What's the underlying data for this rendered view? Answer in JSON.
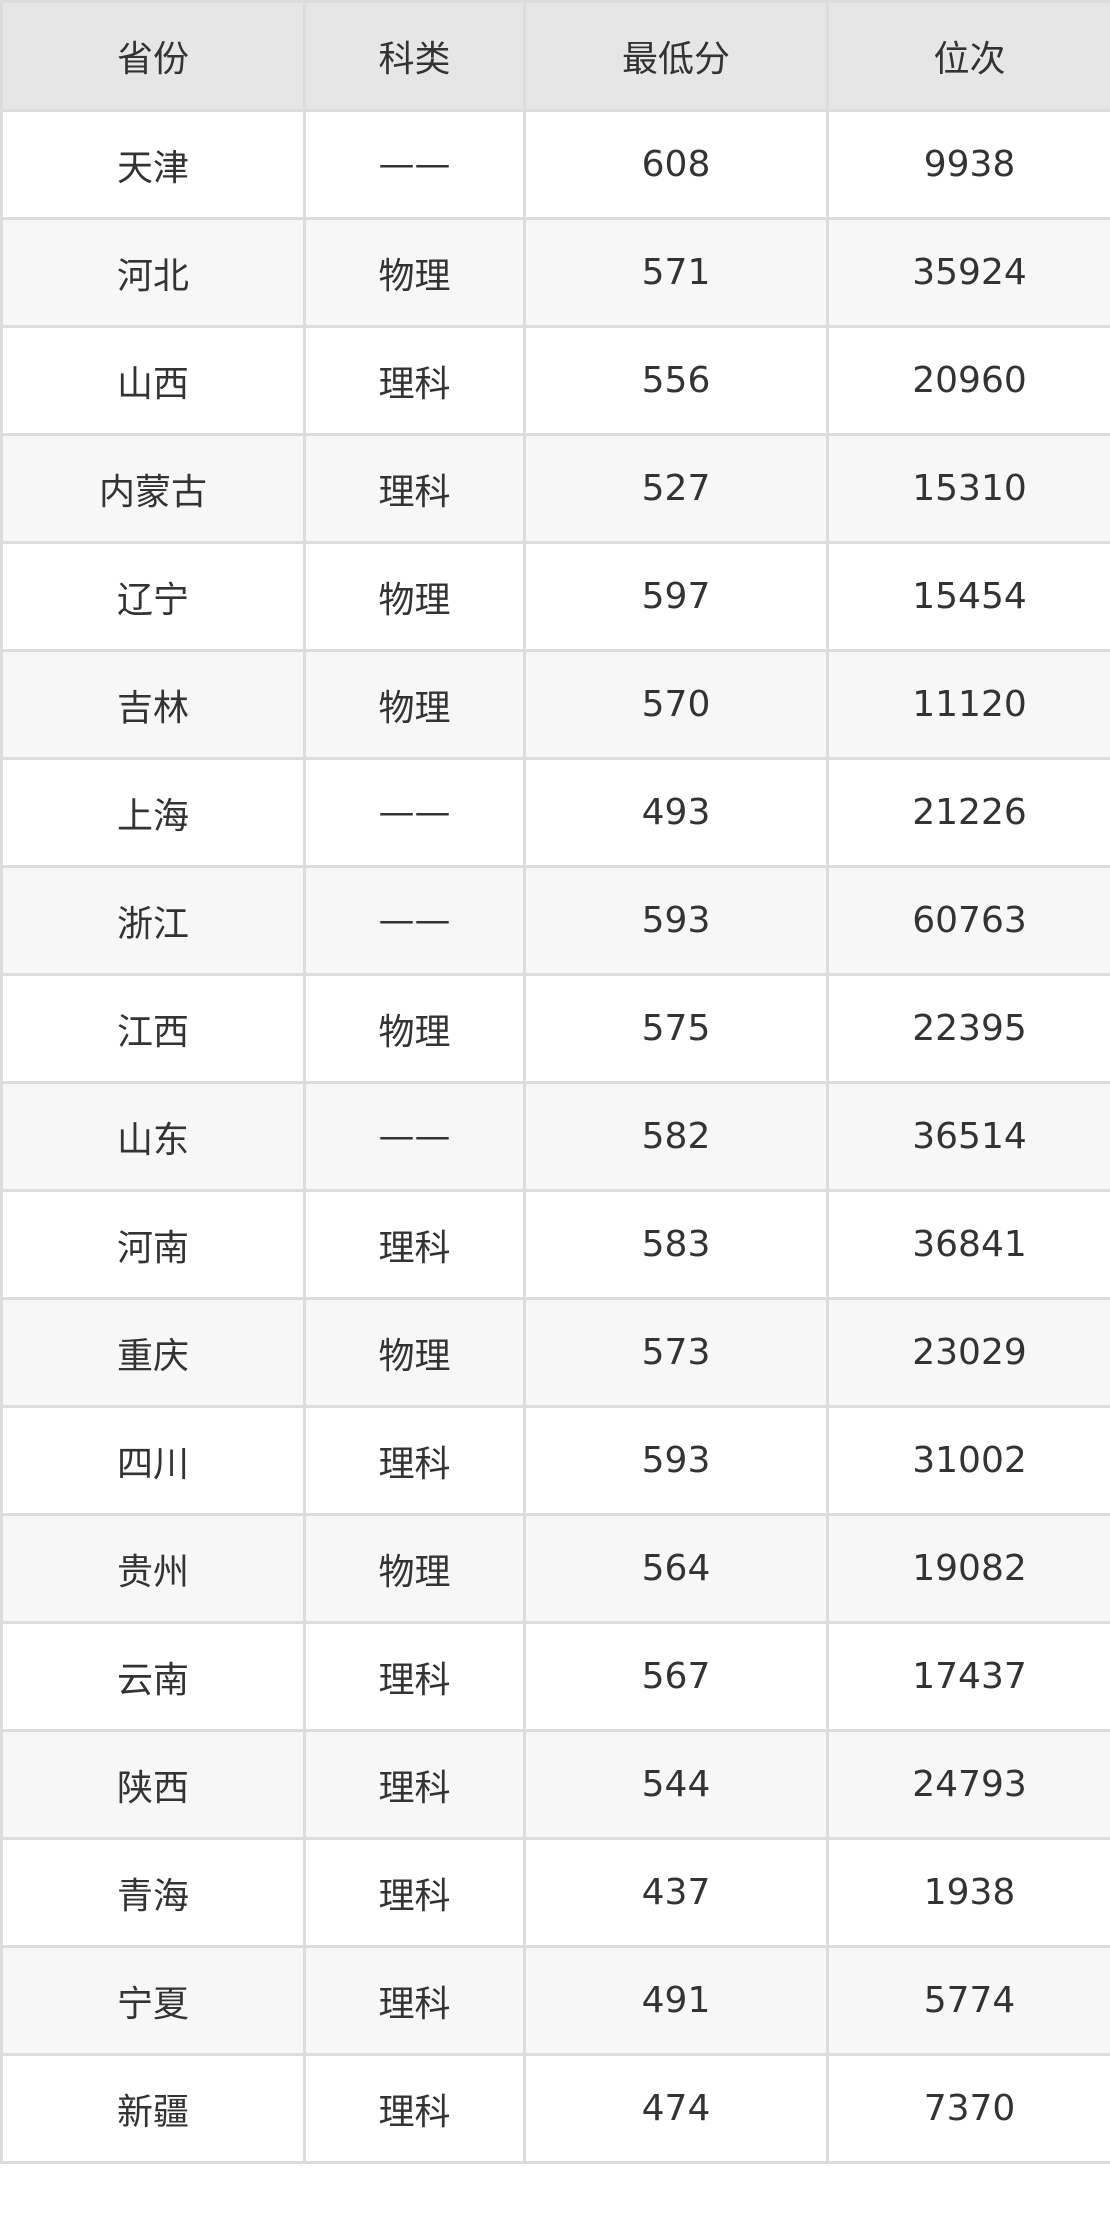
{
  "table": {
    "headers": [
      "省份",
      "科类",
      "最低分",
      "位次"
    ],
    "rows": [
      [
        "天津",
        "——",
        "608",
        "9938"
      ],
      [
        "河北",
        "物理",
        "571",
        "35924"
      ],
      [
        "山西",
        "理科",
        "556",
        "20960"
      ],
      [
        "内蒙古",
        "理科",
        "527",
        "15310"
      ],
      [
        "辽宁",
        "物理",
        "597",
        "15454"
      ],
      [
        "吉林",
        "物理",
        "570",
        "11120"
      ],
      [
        "上海",
        "——",
        "493",
        "21226"
      ],
      [
        "浙江",
        "——",
        "593",
        "60763"
      ],
      [
        "江西",
        "物理",
        "575",
        "22395"
      ],
      [
        "山东",
        "——",
        "582",
        "36514"
      ],
      [
        "河南",
        "理科",
        "583",
        "36841"
      ],
      [
        "重庆",
        "物理",
        "573",
        "23029"
      ],
      [
        "四川",
        "理科",
        "593",
        "31002"
      ],
      [
        "贵州",
        "物理",
        "564",
        "19082"
      ],
      [
        "云南",
        "理科",
        "567",
        "17437"
      ],
      [
        "陕西",
        "理科",
        "544",
        "24793"
      ],
      [
        "青海",
        "理科",
        "437",
        "1938"
      ],
      [
        "宁夏",
        "理科",
        "491",
        "5774"
      ],
      [
        "新疆",
        "理科",
        "474",
        "7370"
      ]
    ]
  }
}
